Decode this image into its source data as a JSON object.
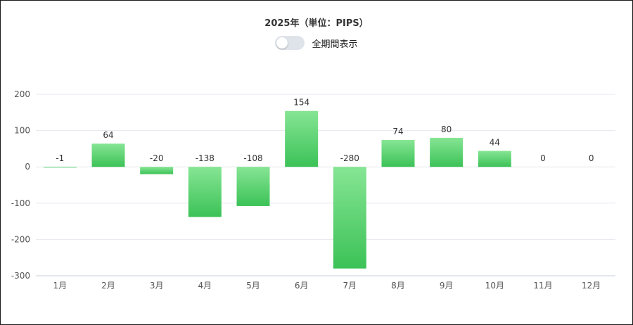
{
  "title": "2025年（単位：PIPS）",
  "toggle": {
    "label": "全期間表示",
    "on": false
  },
  "colors": {
    "bar_top": "#86e594",
    "bar_bottom": "#3cc257",
    "grid": "#e6e8ef",
    "axis": "#c9ccd6"
  },
  "chart_data": {
    "type": "bar",
    "title": "2025年（単位：PIPS）",
    "xlabel": "",
    "ylabel": "",
    "categories": [
      "1月",
      "2月",
      "3月",
      "4月",
      "5月",
      "6月",
      "7月",
      "8月",
      "9月",
      "10月",
      "11月",
      "12月"
    ],
    "values": [
      -1,
      64,
      -20,
      -138,
      -108,
      154,
      -280,
      74,
      80,
      44,
      0,
      0
    ],
    "ylim": [
      -300,
      200
    ],
    "yticks": [
      200,
      100,
      0,
      -100,
      -200,
      -300
    ],
    "grid": true,
    "legend": "none"
  }
}
